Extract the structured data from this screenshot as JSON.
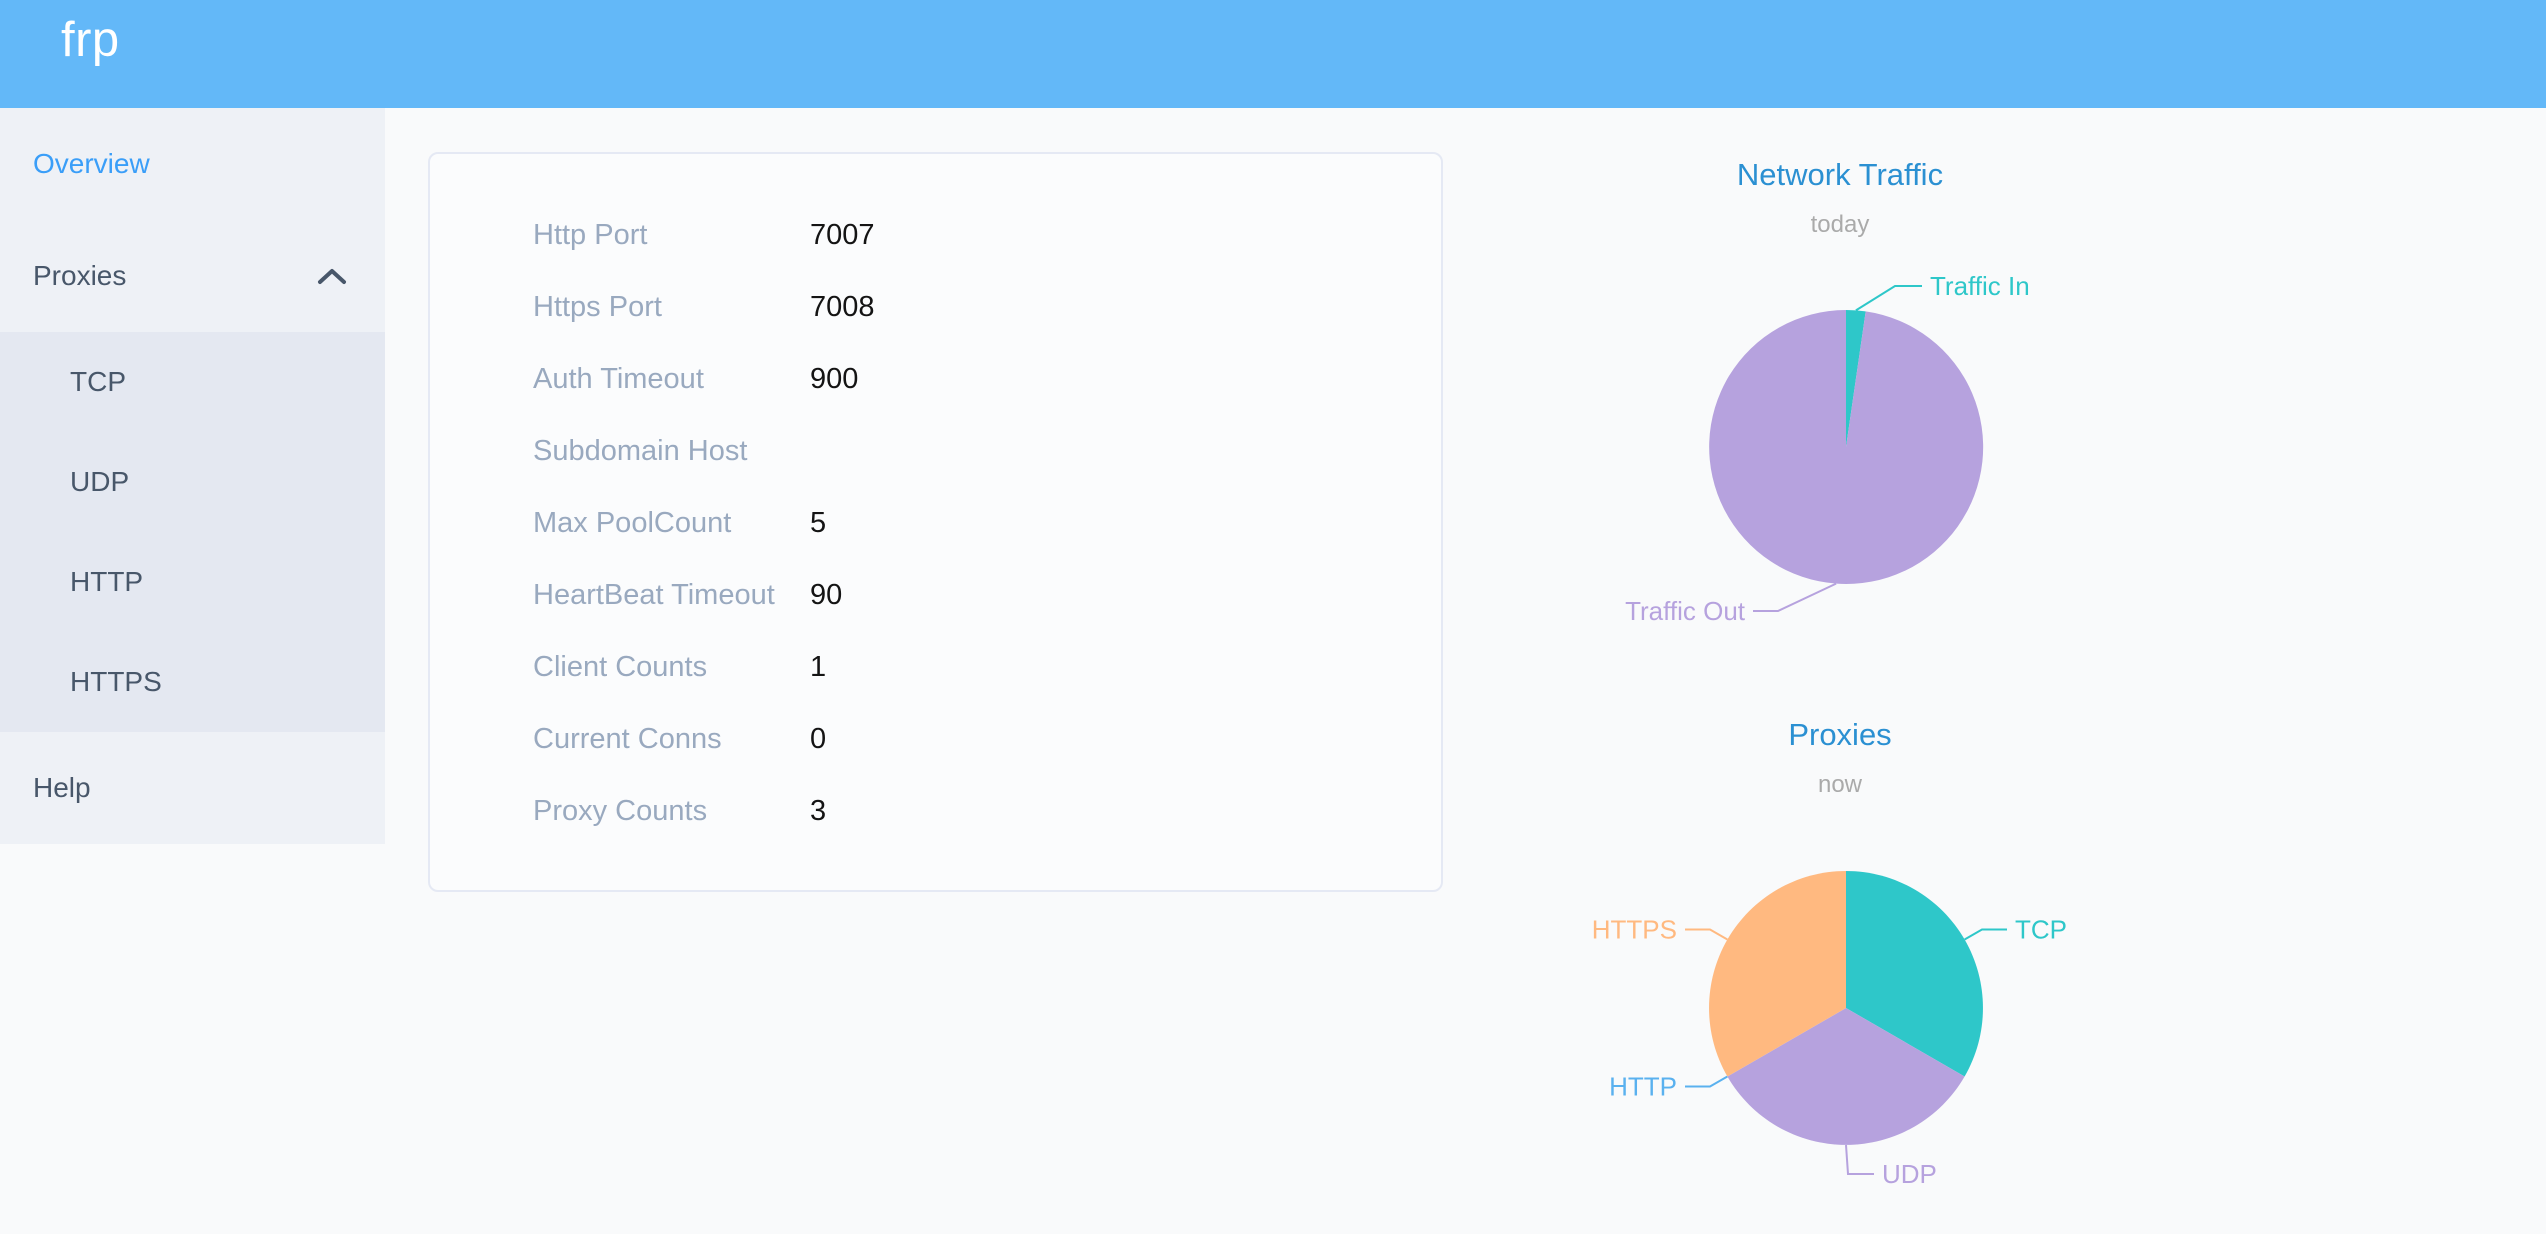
{
  "header": {
    "logo": "frp"
  },
  "sidebar": {
    "items": [
      {
        "label": "Overview",
        "active": true
      },
      {
        "label": "Proxies",
        "expanded": true,
        "children": [
          "TCP",
          "UDP",
          "HTTP",
          "HTTPS"
        ]
      },
      {
        "label": "Help",
        "active": false
      }
    ]
  },
  "overview_card": {
    "rows": [
      {
        "label": "Http Port",
        "value": "7007"
      },
      {
        "label": "Https Port",
        "value": "7008"
      },
      {
        "label": "Auth Timeout",
        "value": "900"
      },
      {
        "label": "Subdomain Host",
        "value": ""
      },
      {
        "label": "Max PoolCount",
        "value": "5"
      },
      {
        "label": "HeartBeat Timeout",
        "value": "90"
      },
      {
        "label": "Client Counts",
        "value": "1"
      },
      {
        "label": "Current Conns",
        "value": "0"
      },
      {
        "label": "Proxy Counts",
        "value": "3"
      }
    ]
  },
  "chart_data": [
    {
      "type": "pie",
      "title": "Network Traffic",
      "subtitle": "today",
      "legend_position": "callout-labels",
      "value_basis": "estimated_percent_of_circle",
      "series": [
        {
          "name": "Traffic In",
          "value": 2.3,
          "color": "#2ec7c9"
        },
        {
          "name": "Traffic Out",
          "value": 97.7,
          "color": "#b6a2de"
        }
      ]
    },
    {
      "type": "pie",
      "title": "Proxies",
      "subtitle": "now",
      "legend_position": "callout-labels",
      "value_basis": "proxy_counts",
      "series": [
        {
          "name": "TCP",
          "value": 1,
          "color": "#2ec7c9"
        },
        {
          "name": "UDP",
          "value": 1,
          "color": "#b6a2de"
        },
        {
          "name": "HTTP",
          "value": 0,
          "color": "#5ab1ef"
        },
        {
          "name": "HTTPS",
          "value": 1,
          "color": "#ffb980"
        }
      ]
    }
  ],
  "colors": {
    "header_bg": "#63b8f8",
    "sidebar_bg": "#eef1f6",
    "submenu_bg": "#e4e8f1",
    "menu_text": "#48576a",
    "active_menu_text": "#3a9ef8",
    "chart_title": "#2b90d2",
    "chart_subtitle": "#aaaaaa",
    "card_label": "#99a9bf",
    "card_value": "#141414",
    "card_border": "#e5e9f4"
  }
}
